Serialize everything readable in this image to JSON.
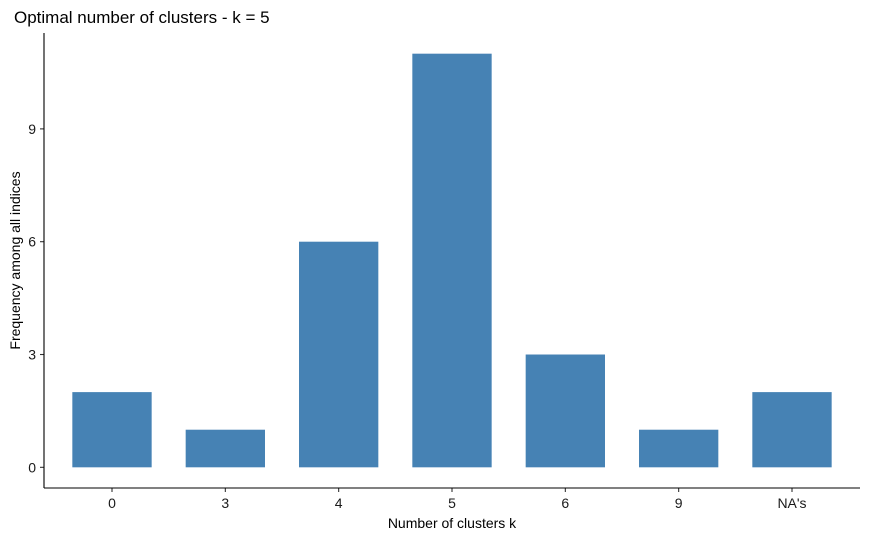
{
  "chart_data": {
    "type": "bar",
    "title": "Optimal number of clusters - k = 5",
    "xlabel": "Number of clusters k",
    "ylabel": "Frequency among all indices",
    "categories": [
      "0",
      "3",
      "4",
      "5",
      "6",
      "9",
      "NA's"
    ],
    "values": [
      2,
      1,
      6,
      11,
      3,
      1,
      2
    ],
    "ylim": [
      -0.55,
      11.55
    ],
    "yticks": [
      0,
      3,
      6,
      9
    ],
    "bar_color": "#4682B4",
    "grid": false,
    "legend": "none"
  }
}
